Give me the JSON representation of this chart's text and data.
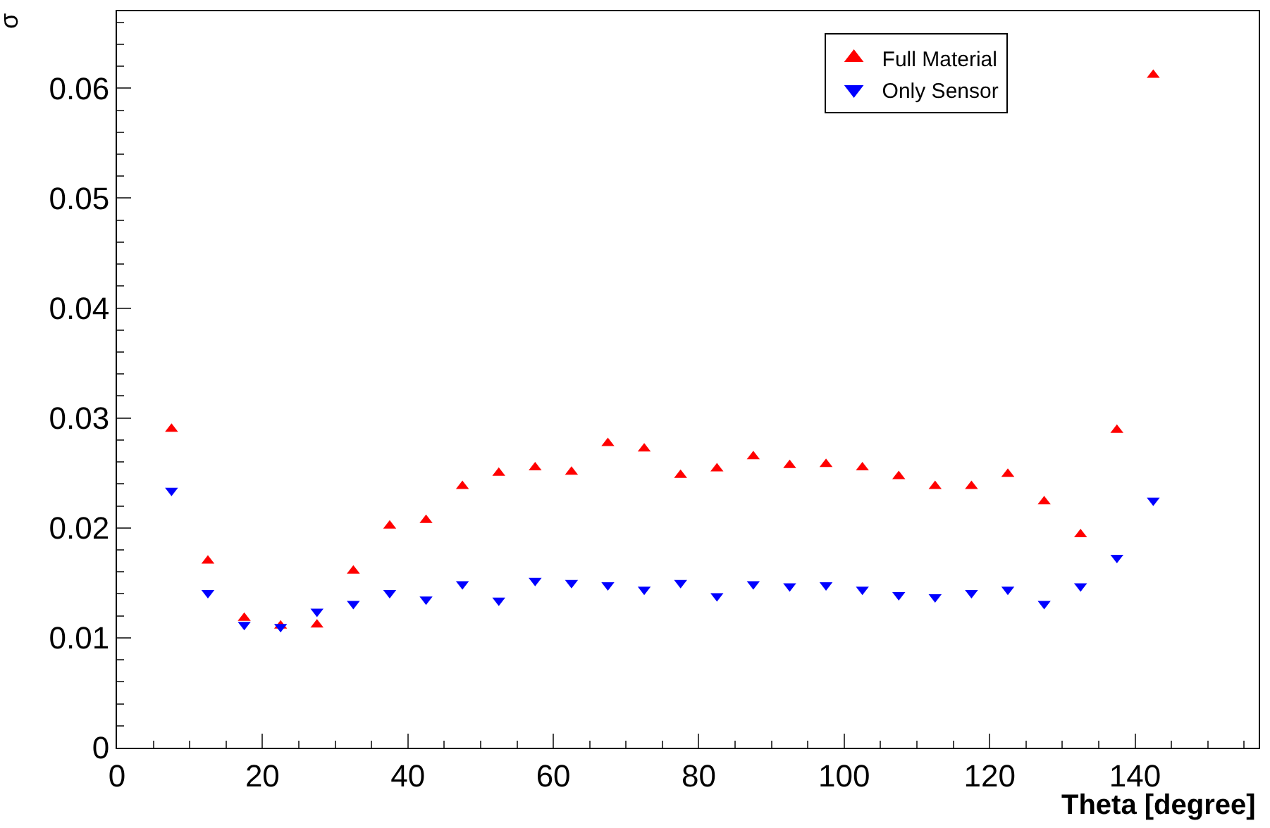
{
  "chart_data": {
    "type": "scatter",
    "xlabel": "Theta [degree]",
    "ylabel": "σ",
    "x": [
      7.5,
      12.5,
      17.5,
      22.5,
      27.5,
      32.5,
      37.5,
      42.5,
      47.5,
      52.5,
      57.5,
      62.5,
      67.5,
      72.5,
      77.5,
      82.5,
      87.5,
      92.5,
      97.5,
      102.5,
      107.5,
      112.5,
      117.5,
      122.5,
      127.5,
      132.5,
      137.5,
      142.5
    ],
    "series": [
      {
        "name": "Full Material",
        "color": "#ff0000",
        "marker": "triangle",
        "values": [
          0.029,
          0.017,
          0.0118,
          0.0111,
          0.0112,
          0.0161,
          0.0202,
          0.0207,
          0.0238,
          0.025,
          0.0255,
          0.0251,
          0.0277,
          0.0272,
          0.0248,
          0.0254,
          0.0265,
          0.0257,
          0.0258,
          0.0255,
          0.0247,
          0.0238,
          0.0238,
          0.0249,
          0.0224,
          0.0194,
          0.0289,
          0.0612
        ]
      },
      {
        "name": "Only Sensor",
        "color": "#0000ff",
        "marker": "triangle-down",
        "values": [
          0.0234,
          0.0141,
          0.0112,
          0.011,
          0.0124,
          0.0131,
          0.0141,
          0.0135,
          0.0149,
          0.0134,
          0.0152,
          0.015,
          0.0148,
          0.0144,
          0.015,
          0.0138,
          0.0149,
          0.0147,
          0.0148,
          0.0144,
          0.0139,
          0.0137,
          0.0141,
          0.0144,
          0.0131,
          0.0147,
          0.0173,
          0.0225
        ]
      }
    ],
    "xlim": [
      0,
      157
    ],
    "xticks": [
      0,
      20,
      40,
      60,
      80,
      100,
      120,
      140
    ],
    "ylim": [
      0,
      0.067
    ],
    "yticks": [
      0,
      0.01,
      0.02,
      0.03,
      0.04,
      0.05,
      0.06
    ],
    "legend": "top right"
  }
}
